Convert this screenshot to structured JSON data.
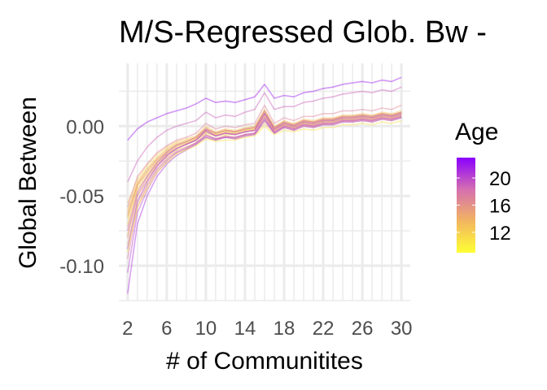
{
  "chart_data": {
    "type": "line",
    "title": "M/S-Regressed Glob. Bw - ",
    "xlabel": "# of Communitites",
    "ylabel": "Global Between",
    "x": [
      2,
      3,
      4,
      5,
      6,
      7,
      8,
      9,
      10,
      11,
      12,
      13,
      14,
      15,
      16,
      17,
      18,
      19,
      20,
      21,
      22,
      23,
      24,
      25,
      26,
      27,
      28,
      29,
      30
    ],
    "xlim": [
      1.1,
      30.9
    ],
    "ylim": [
      -0.125,
      0.045
    ],
    "x_ticks": [
      2,
      6,
      10,
      14,
      18,
      22,
      26,
      30
    ],
    "x_tick_labels": [
      "2",
      "6",
      "10",
      "14",
      "18",
      "22",
      "26",
      "30"
    ],
    "y_ticks": [
      0.0,
      -0.05,
      -0.1
    ],
    "y_tick_labels": [
      "0.00",
      "-0.05",
      "-0.10"
    ],
    "grid": true,
    "legend": {
      "title": "Age",
      "position": "right",
      "type": "colorbar",
      "range": [
        9,
        23
      ],
      "ticks": [
        20,
        16,
        12
      ],
      "tick_labels": [
        "20",
        "16",
        "12"
      ],
      "colors": [
        "#ffff33",
        "#f2b560",
        "#d56fb0",
        "#8a00ff"
      ]
    },
    "series": [
      {
        "age": 10,
        "values": [
          -0.065,
          -0.042,
          -0.033,
          -0.024,
          -0.018,
          -0.014,
          -0.012,
          -0.009,
          -0.003,
          -0.006,
          -0.004,
          -0.005,
          -0.003,
          -0.002,
          0.008,
          -0.002,
          0.002,
          0.0,
          0.003,
          0.002,
          0.004,
          0.004,
          0.006,
          0.006,
          0.007,
          0.006,
          0.008,
          0.007,
          0.009
        ]
      },
      {
        "age": 11,
        "values": [
          -0.07,
          -0.045,
          -0.036,
          -0.026,
          -0.02,
          -0.015,
          -0.013,
          -0.01,
          -0.005,
          -0.007,
          -0.006,
          -0.006,
          -0.004,
          -0.003,
          0.006,
          -0.003,
          0.001,
          -0.001,
          0.002,
          0.001,
          0.003,
          0.003,
          0.005,
          0.005,
          0.006,
          0.005,
          0.007,
          0.006,
          0.008
        ]
      },
      {
        "age": 12,
        "values": [
          -0.06,
          -0.04,
          -0.03,
          -0.022,
          -0.016,
          -0.012,
          -0.01,
          -0.008,
          -0.002,
          -0.005,
          -0.003,
          -0.004,
          -0.002,
          -0.001,
          0.01,
          -0.001,
          0.003,
          0.001,
          0.004,
          0.003,
          0.005,
          0.005,
          0.007,
          0.007,
          0.008,
          0.007,
          0.009,
          0.008,
          0.01
        ]
      },
      {
        "age": 12,
        "values": [
          -0.078,
          -0.05,
          -0.039,
          -0.028,
          -0.022,
          -0.017,
          -0.015,
          -0.012,
          -0.006,
          -0.009,
          -0.007,
          -0.008,
          -0.006,
          -0.005,
          0.004,
          -0.004,
          0.0,
          -0.002,
          0.001,
          0.0,
          0.002,
          0.002,
          0.004,
          0.004,
          0.005,
          0.004,
          0.006,
          0.005,
          0.007
        ]
      },
      {
        "age": 13,
        "values": [
          -0.055,
          -0.038,
          -0.028,
          -0.02,
          -0.015,
          -0.011,
          -0.009,
          -0.007,
          0.0,
          -0.004,
          -0.002,
          -0.003,
          -0.001,
          0.0,
          0.012,
          0.0,
          0.004,
          0.002,
          0.005,
          0.004,
          0.006,
          0.006,
          0.008,
          0.008,
          0.009,
          0.008,
          0.01,
          0.009,
          0.011
        ]
      },
      {
        "age": 13,
        "values": [
          -0.085,
          -0.055,
          -0.042,
          -0.031,
          -0.024,
          -0.019,
          -0.016,
          -0.013,
          -0.008,
          -0.01,
          -0.008,
          -0.009,
          -0.007,
          -0.006,
          0.002,
          -0.005,
          -0.001,
          -0.003,
          0.0,
          -0.001,
          0.001,
          0.001,
          0.003,
          0.003,
          0.004,
          0.003,
          0.005,
          0.004,
          0.006
        ]
      },
      {
        "age": 14,
        "values": [
          -0.066,
          -0.043,
          -0.034,
          -0.025,
          -0.019,
          -0.014,
          -0.012,
          -0.009,
          -0.003,
          -0.006,
          -0.004,
          -0.005,
          -0.003,
          -0.002,
          0.009,
          -0.002,
          0.002,
          0.0,
          0.003,
          0.002,
          0.004,
          0.004,
          0.006,
          0.006,
          0.007,
          0.006,
          0.008,
          0.007,
          0.009
        ]
      },
      {
        "age": 15,
        "values": [
          -0.072,
          -0.046,
          -0.036,
          -0.027,
          -0.02,
          -0.016,
          -0.013,
          -0.01,
          -0.004,
          -0.007,
          -0.005,
          -0.006,
          -0.004,
          -0.003,
          0.007,
          -0.003,
          0.001,
          -0.001,
          0.002,
          0.001,
          0.003,
          0.003,
          0.005,
          0.005,
          0.006,
          0.005,
          0.007,
          0.006,
          0.008
        ]
      },
      {
        "age": 16,
        "values": [
          -0.064,
          -0.042,
          -0.032,
          -0.024,
          -0.018,
          -0.013,
          -0.011,
          -0.008,
          -0.002,
          -0.005,
          -0.003,
          -0.004,
          -0.002,
          -0.001,
          0.01,
          -0.001,
          0.003,
          0.001,
          0.004,
          0.003,
          0.005,
          0.005,
          0.007,
          0.007,
          0.008,
          0.007,
          0.009,
          0.008,
          0.01
        ]
      },
      {
        "age": 17,
        "values": [
          -0.08,
          -0.05,
          -0.038,
          -0.028,
          -0.021,
          -0.016,
          -0.013,
          -0.01,
          -0.004,
          -0.007,
          -0.005,
          -0.006,
          -0.004,
          -0.003,
          0.008,
          -0.003,
          0.001,
          -0.001,
          0.002,
          0.001,
          0.003,
          0.003,
          0.005,
          0.005,
          0.006,
          0.005,
          0.007,
          0.006,
          0.008
        ]
      },
      {
        "age": 18,
        "values": [
          -0.095,
          -0.058,
          -0.043,
          -0.031,
          -0.023,
          -0.018,
          -0.015,
          -0.012,
          -0.006,
          -0.009,
          -0.007,
          -0.008,
          -0.006,
          -0.005,
          0.005,
          -0.005,
          0.0,
          -0.002,
          0.001,
          0.0,
          0.002,
          0.002,
          0.004,
          0.004,
          0.005,
          0.004,
          0.006,
          0.005,
          0.007
        ]
      },
      {
        "age": 19,
        "values": [
          -0.075,
          -0.048,
          -0.036,
          -0.026,
          -0.019,
          -0.014,
          -0.011,
          -0.008,
          -0.002,
          -0.005,
          -0.003,
          -0.004,
          -0.002,
          -0.001,
          0.011,
          -0.001,
          0.003,
          0.001,
          0.004,
          0.003,
          0.005,
          0.005,
          0.007,
          0.007,
          0.008,
          0.007,
          0.009,
          0.008,
          0.01
        ]
      },
      {
        "age": 20,
        "values": [
          -0.105,
          -0.062,
          -0.046,
          -0.033,
          -0.025,
          -0.019,
          -0.016,
          -0.012,
          -0.007,
          -0.009,
          -0.008,
          -0.008,
          -0.006,
          -0.005,
          0.006,
          -0.004,
          0.0,
          -0.002,
          0.001,
          0.0,
          0.002,
          0.002,
          0.004,
          0.004,
          0.005,
          0.004,
          0.006,
          0.005,
          0.007
        ]
      },
      {
        "age": 21,
        "values": [
          -0.088,
          -0.054,
          -0.04,
          -0.029,
          -0.021,
          -0.016,
          -0.013,
          -0.01,
          -0.003,
          -0.007,
          -0.005,
          -0.006,
          -0.004,
          -0.003,
          0.009,
          -0.002,
          0.002,
          0.0,
          0.003,
          0.002,
          0.004,
          0.004,
          0.006,
          0.006,
          0.007,
          0.006,
          0.008,
          0.007,
          0.009
        ]
      },
      {
        "age": 22,
        "values": [
          -0.01,
          -0.002,
          0.003,
          0.006,
          0.009,
          0.011,
          0.013,
          0.016,
          0.02,
          0.017,
          0.018,
          0.017,
          0.019,
          0.021,
          0.03,
          0.02,
          0.022,
          0.021,
          0.024,
          0.025,
          0.027,
          0.028,
          0.03,
          0.031,
          0.032,
          0.031,
          0.033,
          0.032,
          0.035
        ]
      },
      {
        "age": 21,
        "values": [
          -0.12,
          -0.07,
          -0.05,
          -0.036,
          -0.027,
          -0.021,
          -0.017,
          -0.013,
          -0.008,
          -0.01,
          -0.008,
          -0.009,
          -0.007,
          -0.006,
          0.004,
          -0.005,
          -0.001,
          -0.003,
          0.0,
          -0.001,
          0.001,
          0.001,
          0.003,
          0.003,
          0.004,
          0.003,
          0.005,
          0.004,
          0.006
        ]
      },
      {
        "age": 19,
        "values": [
          -0.04,
          -0.025,
          -0.015,
          -0.008,
          -0.003,
          0.0,
          0.002,
          0.004,
          0.01,
          0.006,
          0.008,
          0.007,
          0.01,
          0.012,
          0.024,
          0.012,
          0.014,
          0.014,
          0.017,
          0.018,
          0.02,
          0.021,
          0.023,
          0.024,
          0.025,
          0.024,
          0.026,
          0.025,
          0.028
        ]
      },
      {
        "age": 11,
        "values": [
          -0.09,
          -0.058,
          -0.045,
          -0.033,
          -0.026,
          -0.02,
          -0.017,
          -0.014,
          -0.009,
          -0.011,
          -0.01,
          -0.01,
          -0.008,
          -0.007,
          0.0,
          -0.006,
          -0.003,
          -0.004,
          -0.002,
          -0.003,
          -0.001,
          -0.001,
          0.001,
          0.001,
          0.002,
          0.001,
          0.003,
          0.002,
          0.004
        ]
      },
      {
        "age": 17,
        "values": [
          -0.058,
          -0.036,
          -0.027,
          -0.019,
          -0.014,
          -0.01,
          -0.008,
          -0.005,
          0.002,
          -0.002,
          0.0,
          -0.001,
          0.001,
          0.002,
          0.015,
          0.002,
          0.006,
          0.004,
          0.007,
          0.007,
          0.009,
          0.009,
          0.011,
          0.011,
          0.012,
          0.011,
          0.013,
          0.012,
          0.015
        ]
      },
      {
        "age": 14,
        "values": [
          -0.062,
          -0.041,
          -0.031,
          -0.023,
          -0.017,
          -0.013,
          -0.011,
          -0.008,
          -0.001,
          -0.005,
          -0.003,
          -0.004,
          -0.002,
          -0.001,
          0.011,
          -0.001,
          0.003,
          0.001,
          0.004,
          0.003,
          0.005,
          0.005,
          0.007,
          0.007,
          0.008,
          0.007,
          0.009,
          0.008,
          0.01
        ]
      }
    ]
  }
}
